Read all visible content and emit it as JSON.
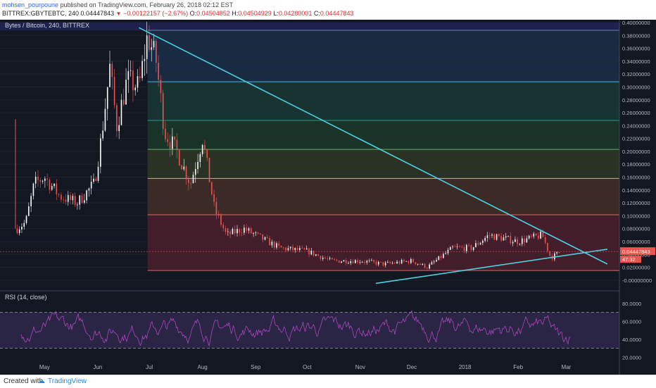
{
  "header": {
    "author": "mohsen_pourpoune",
    "published": "published on TradingView.com, February 26, 2018 02:12 EST",
    "symbol": "BITTREX:GBYTEBTC, 240",
    "last": "0.04447843",
    "change": "−0.00122157 (−2.67%)",
    "o_label": "O:",
    "o": "0.04504852",
    "h_label": "H:",
    "h": "0.04504929",
    "l_label": "L:",
    "l": "0.04280001",
    "c_label": "C:",
    "c": "0.04447843"
  },
  "footer": {
    "created_with": "Created with",
    "brand": "TradingView"
  },
  "colors": {
    "up": "#ffffff",
    "down": "#ef5350",
    "trend": "#4dd0e1",
    "rsi": "#ab47bc",
    "bg": "#131722"
  },
  "chart_data": {
    "type": "candlestick",
    "title": "Bytes / Bitcoin, 240, BITTREX",
    "price_ylim": [
      -0.01,
      0.4
    ],
    "price_ticks": [
      "0.40000000",
      "0.38000000",
      "0.36000000",
      "0.34000000",
      "0.32000000",
      "0.30000000",
      "0.28000000",
      "0.26000000",
      "0.24000000",
      "0.22000000",
      "0.20000000",
      "0.18000000",
      "0.16000000",
      "0.14000000",
      "0.12000000",
      "0.10000000",
      "0.08000000",
      "0.06000000",
      "0.04000000",
      "0.02000000",
      "-0.00000000"
    ],
    "last_price_label": "0.04447843",
    "countdown_label": "47:32",
    "x_labels": [
      "May",
      "Jun",
      "Jul",
      "Aug",
      "Sep",
      "Oct",
      "Nov",
      "Dec",
      "2018",
      "Feb",
      "Mar"
    ],
    "price_path": [
      [
        "2017-04-15",
        0.08
      ],
      [
        "2017-04-20",
        0.09
      ],
      [
        "2017-04-25",
        0.15
      ],
      [
        "2017-05-01",
        0.16
      ],
      [
        "2017-05-10",
        0.13
      ],
      [
        "2017-05-20",
        0.12
      ],
      [
        "2017-05-30",
        0.15
      ],
      [
        "2017-06-03",
        0.22
      ],
      [
        "2017-06-08",
        0.33
      ],
      [
        "2017-06-12",
        0.24
      ],
      [
        "2017-06-18",
        0.31
      ],
      [
        "2017-06-25",
        0.3
      ],
      [
        "2017-06-30",
        0.38
      ],
      [
        "2017-07-05",
        0.34
      ],
      [
        "2017-07-10",
        0.23
      ],
      [
        "2017-07-17",
        0.2
      ],
      [
        "2017-07-25",
        0.15
      ],
      [
        "2017-08-01",
        0.22
      ],
      [
        "2017-08-08",
        0.11
      ],
      [
        "2017-08-15",
        0.07
      ],
      [
        "2017-08-25",
        0.08
      ],
      [
        "2017-09-01",
        0.07
      ],
      [
        "2017-09-15",
        0.05
      ],
      [
        "2017-10-01",
        0.045
      ],
      [
        "2017-10-15",
        0.03
      ],
      [
        "2017-11-01",
        0.03
      ],
      [
        "2017-11-15",
        0.025
      ],
      [
        "2017-12-01",
        0.03
      ],
      [
        "2017-12-10",
        0.02
      ],
      [
        "2017-12-25",
        0.05
      ],
      [
        "2018-01-05",
        0.05
      ],
      [
        "2018-01-15",
        0.07
      ],
      [
        "2018-02-01",
        0.06
      ],
      [
        "2018-02-15",
        0.07
      ],
      [
        "2018-02-20",
        0.035
      ],
      [
        "2018-02-26",
        0.044
      ]
    ],
    "fib_levels": [
      0.015,
      0.1015,
      0.158,
      0.203,
      0.248,
      0.308,
      0.388
    ],
    "fib_start": "2017-06-30",
    "trendlines": [
      {
        "from": [
          "2017-06-25",
          0.392
        ],
        "to": [
          "2018-03-25",
          0.025
        ]
      },
      {
        "from": [
          "2017-11-10",
          -0.005
        ],
        "to": [
          "2018-03-25",
          0.048
        ]
      }
    ],
    "rsi": {
      "label": "RSI (14, close)",
      "ylim": [
        10,
        90
      ],
      "ticks": [
        "80.0000",
        "60.0000",
        "40.0000",
        "20.0000"
      ],
      "bands": [
        70,
        30
      ]
    }
  }
}
